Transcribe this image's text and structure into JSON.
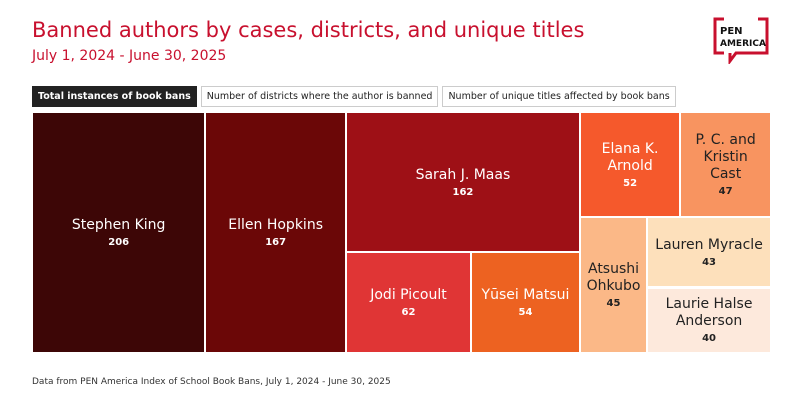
{
  "title": "Banned authors by cases, districts, and unique titles",
  "subtitle": "July 1, 2024 - June 30, 2025",
  "logo": [
    "PEN",
    "AMERICA"
  ],
  "tabs": [
    "Total instances of book bans",
    "Number of districts where the author is banned",
    "Number of unique titles affected by book bans"
  ],
  "active_tab": 0,
  "source": "Data from PEN America Index of School Book Bans, July 1, 2024 - June 30, 2025",
  "chart_data": {
    "type": "treemap",
    "categories": [
      "Stephen King",
      "Ellen Hopkins",
      "Sarah J. Maas",
      "Jodi Picoult",
      "Yūsei Matsui",
      "Elana K. Arnold",
      "P. C. and Kristin Cast",
      "Atsushi Ohkubo",
      "Lauren Myracle",
      "Laurie Halse Anderson"
    ],
    "values": [
      206,
      167,
      162,
      62,
      54,
      52,
      47,
      45,
      43,
      40
    ],
    "colors": [
      "#3d0606",
      "#6b0707",
      "#9e1016",
      "#e03535",
      "#ed6221",
      "#f5592c",
      "#f89460",
      "#fbb887",
      "#fde0bb",
      "#fde9dc"
    ]
  }
}
